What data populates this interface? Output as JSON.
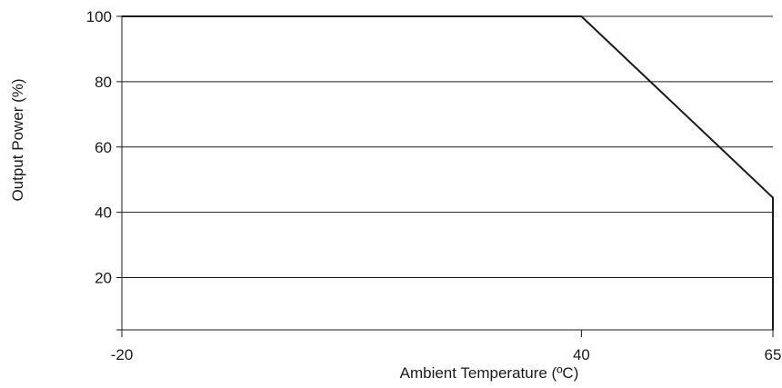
{
  "chart_data": {
    "type": "line",
    "title": "",
    "xlabel": "Ambient Temperature (ºC)",
    "ylabel": "Output Power (%)",
    "x_ticks": [
      "-20",
      "40",
      "65"
    ],
    "y_ticks": [
      "100",
      "80",
      "60",
      "40",
      "20"
    ],
    "xlim": [
      -20,
      65
    ],
    "ylim": [
      4,
      100
    ],
    "grid": "horizontal",
    "series": [
      {
        "x": [
          -20,
          40,
          65,
          65
        ],
        "y": [
          100,
          100,
          44.5,
          4
        ]
      }
    ],
    "colors": {
      "line": "#1a1a1a",
      "grid": "#1a1a1a",
      "axis": "#1a1a1a"
    }
  }
}
